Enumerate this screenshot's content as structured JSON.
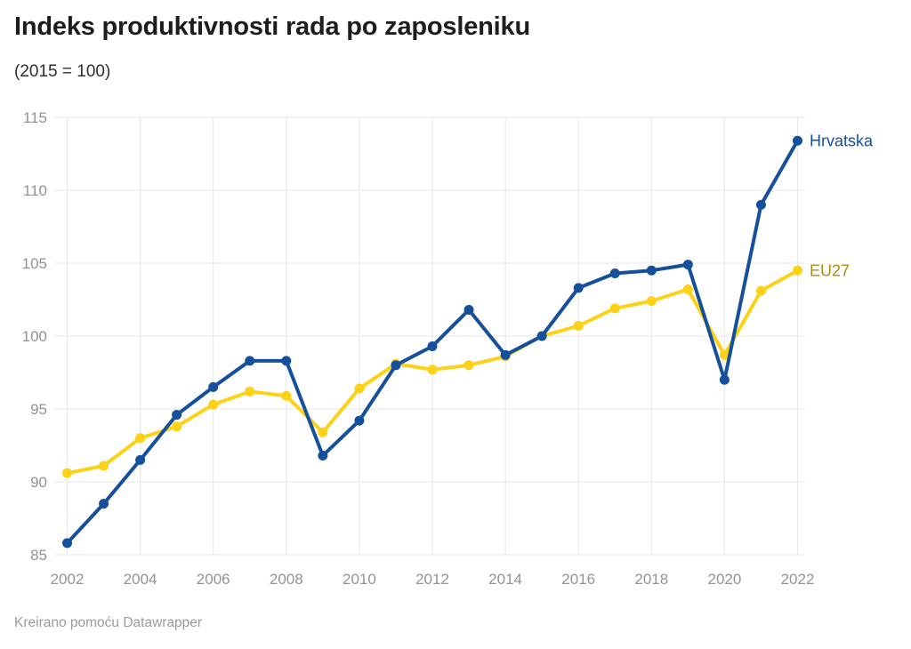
{
  "title": "Indeks produktivnosti rada po zaposleniku",
  "subtitle": "(2015 = 100)",
  "footer": {
    "credit": "Kreirano pomoću Datawrapper"
  },
  "colors": {
    "hrvatska_line": "#15509d",
    "hrvatska_label": "#15509d",
    "eu27_line": "#fdd216",
    "eu27_label": "#ad8d10",
    "gridline": "#e7e7e7",
    "axis_text": "#939393",
    "title_text": "#1d1d1d",
    "subtitle_text": "#2e2e2e",
    "footer_text": "#9b9b9b",
    "background": "#ffffff"
  },
  "chart_data": {
    "type": "line",
    "title": "Indeks produktivnosti rada po zaposleniku",
    "subtitle": "(2015 = 100)",
    "x": [
      2002,
      2003,
      2004,
      2005,
      2006,
      2007,
      2008,
      2009,
      2010,
      2011,
      2012,
      2013,
      2014,
      2015,
      2016,
      2017,
      2018,
      2019,
      2020,
      2021,
      2022
    ],
    "series": [
      {
        "name": "EU27",
        "color": "#fdd216",
        "label_color": "#ad8d10",
        "values": [
          90.6,
          91.1,
          93.0,
          93.8,
          95.3,
          96.2,
          95.9,
          93.4,
          96.4,
          98.1,
          97.7,
          98.0,
          98.6,
          100.0,
          100.7,
          101.9,
          102.4,
          103.2,
          98.7,
          103.1,
          104.5
        ]
      },
      {
        "name": "Hrvatska",
        "color": "#15509d",
        "label_color": "#15509d",
        "values": [
          85.8,
          88.5,
          91.5,
          94.6,
          96.5,
          98.3,
          98.3,
          91.8,
          94.2,
          98.0,
          99.3,
          101.8,
          98.7,
          100.0,
          103.3,
          104.3,
          104.5,
          104.9,
          97.0,
          109.0,
          113.4
        ]
      }
    ],
    "ylim": [
      85,
      115
    ],
    "y_ticks": [
      85,
      90,
      95,
      100,
      105,
      110,
      115
    ],
    "x_ticks": [
      2002,
      2004,
      2006,
      2008,
      2010,
      2012,
      2014,
      2016,
      2018,
      2020,
      2022
    ],
    "grid": true,
    "legend_position": "labels-at-line-end"
  }
}
